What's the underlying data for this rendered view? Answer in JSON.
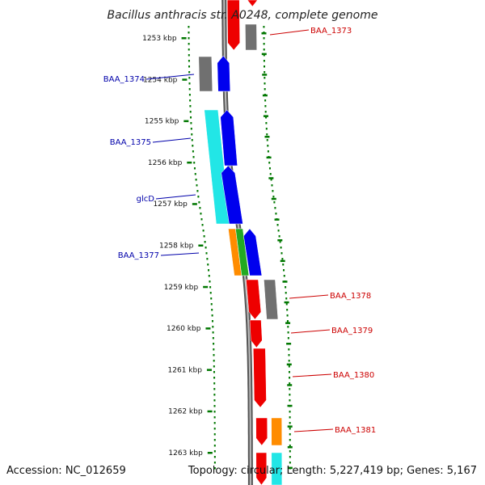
{
  "title": "Bacillus anthracis str. A0248, complete genome",
  "footer": {
    "accession": "Accession: NC_012659",
    "topology": "Topology: circular; Length: 5,227,419 bp; Genes: 5,167"
  },
  "colors": {
    "forward": "#0000ee",
    "reverse": "#ee0000",
    "cds_gray": "#707070",
    "cds_cyan": "#22e6e6",
    "cds_orange": "#ff8c00",
    "cds_green": "#22aa22",
    "tick": "#007700",
    "label_left": "#0000aa",
    "label_right": "#cc0000"
  },
  "ticks": [
    "1253 kbp",
    "1254 kbp",
    "1255 kbp",
    "1256 kbp",
    "1257 kbp",
    "1258 kbp",
    "1259 kbp",
    "1260 kbp",
    "1261 kbp",
    "1262 kbp",
    "1263 kbp"
  ],
  "gene_labels_left": [
    "BAA_1374",
    "BAA_1375",
    "glcD",
    "BAA_1377"
  ],
  "gene_labels_right": [
    "BAA_1373",
    "BAA_1378",
    "BAA_1379",
    "BAA_1380",
    "BAA_1381"
  ]
}
